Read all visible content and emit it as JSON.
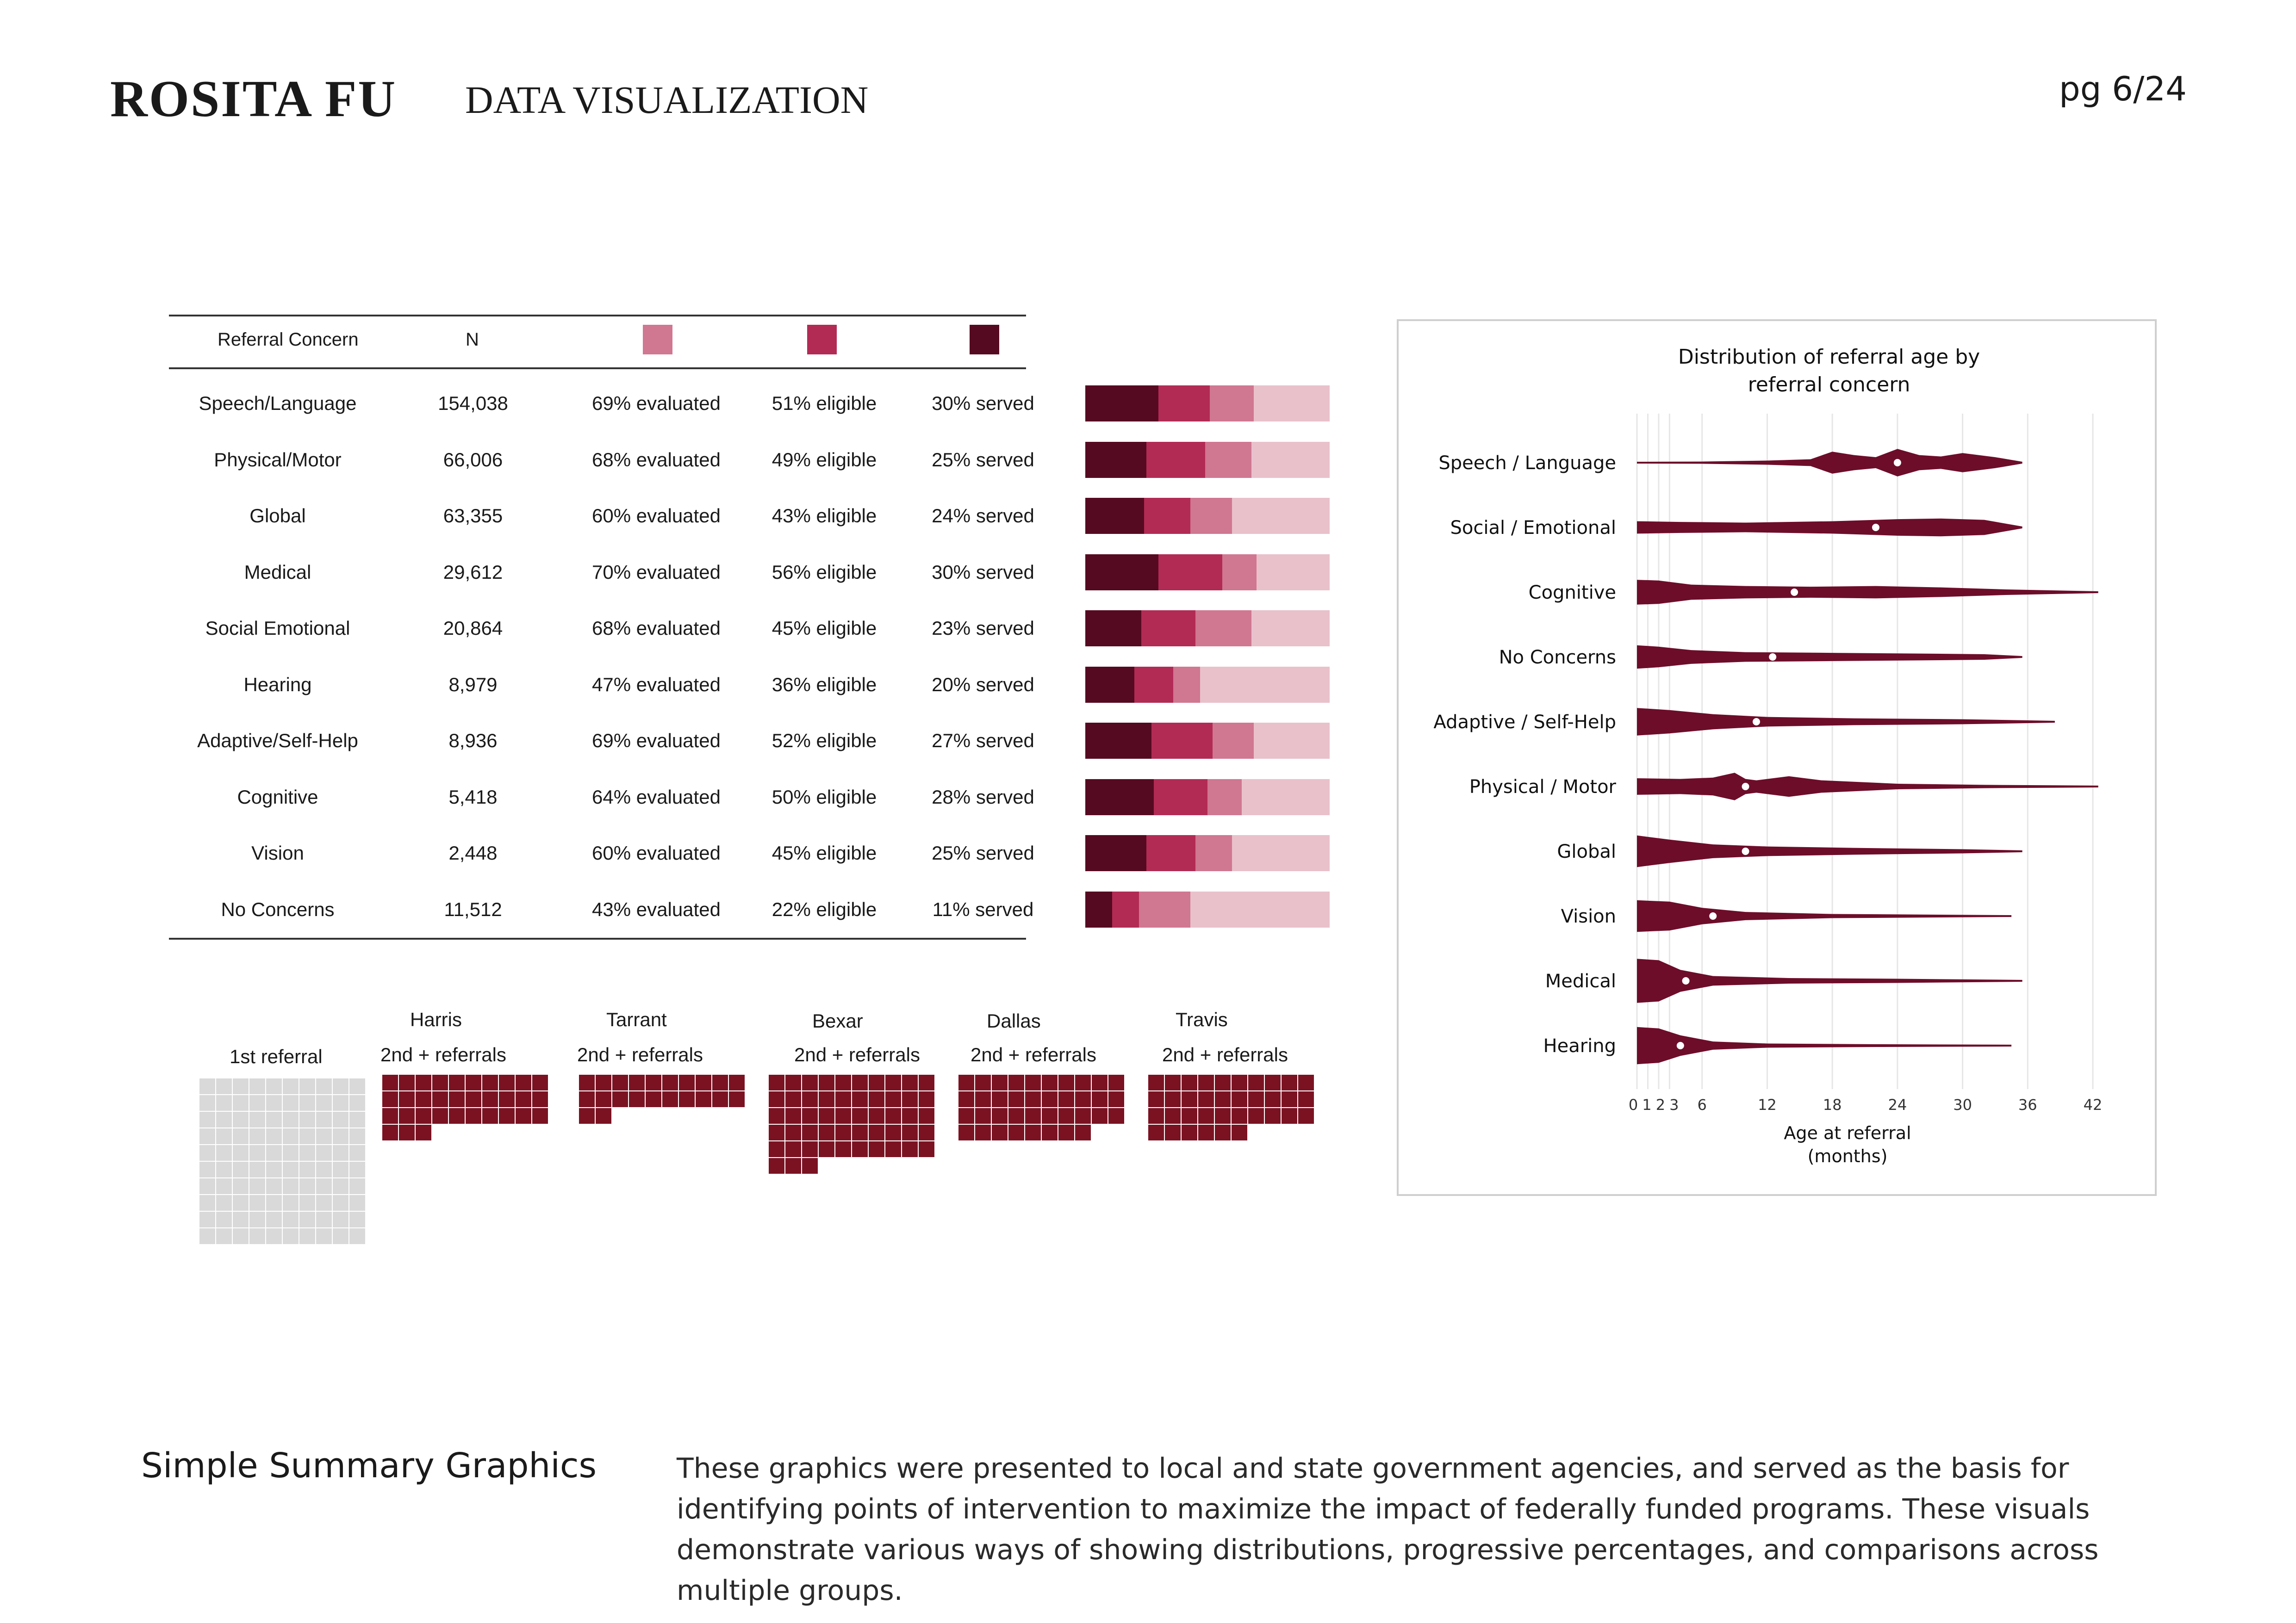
{
  "header": {
    "name": "ROSITA FU",
    "section": "DATA VISUALIZATION",
    "page": "pg 6/24"
  },
  "colors": {
    "served": "#560a21",
    "eligible": "#b22b55",
    "evaluated": "#d07791",
    "rest": "#e9c1cb",
    "violin": "#6d0d2a",
    "waffle": "#7a1222",
    "waffle_grey": "#d9d9d9"
  },
  "table": {
    "headers": {
      "concern": "Referral Concern",
      "n": "N"
    },
    "rows": [
      {
        "concern": "Speech/Language",
        "n": "154,038",
        "evaluated": "69% evaluated",
        "eligible": "51% eligible",
        "served": "30% served"
      },
      {
        "concern": "Physical/Motor",
        "n": "66,006",
        "evaluated": "68% evaluated",
        "eligible": "49% eligible",
        "served": "25% served"
      },
      {
        "concern": "Global",
        "n": "63,355",
        "evaluated": "60% evaluated",
        "eligible": "43% eligible",
        "served": "24% served"
      },
      {
        "concern": "Medical",
        "n": "29,612",
        "evaluated": "70% evaluated",
        "eligible": "56% eligible",
        "served": "30% served"
      },
      {
        "concern": "Social Emotional",
        "n": "20,864",
        "evaluated": "68% evaluated",
        "eligible": "45% eligible",
        "served": "23% served"
      },
      {
        "concern": "Hearing",
        "n": "8,979",
        "evaluated": "47% evaluated",
        "eligible": "36% eligible",
        "served": "20% served"
      },
      {
        "concern": "Adaptive/Self-Help",
        "n": "8,936",
        "evaluated": "69% evaluated",
        "eligible": "52% eligible",
        "served": "27% served"
      },
      {
        "concern": "Cognitive",
        "n": "5,418",
        "evaluated": "64% evaluated",
        "eligible": "50% eligible",
        "served": "28% served"
      },
      {
        "concern": "Vision",
        "n": "2,448",
        "evaluated": "60% evaluated",
        "eligible": "45% eligible",
        "served": "25% served"
      },
      {
        "concern": "No Concerns",
        "n": "11,512",
        "evaluated": "43% evaluated",
        "eligible": "22% eligible",
        "served": "11% served"
      }
    ],
    "bar_fractions": [
      [
        0.3,
        0.51,
        0.69
      ],
      [
        0.25,
        0.49,
        0.68
      ],
      [
        0.24,
        0.43,
        0.6
      ],
      [
        0.3,
        0.56,
        0.7
      ],
      [
        0.23,
        0.45,
        0.68
      ],
      [
        0.2,
        0.36,
        0.47
      ],
      [
        0.27,
        0.52,
        0.69
      ],
      [
        0.28,
        0.5,
        0.64
      ],
      [
        0.25,
        0.45,
        0.6
      ],
      [
        0.11,
        0.22,
        0.43
      ]
    ]
  },
  "waffles": {
    "first": {
      "label": "1st referral",
      "count": 100
    },
    "counties": [
      {
        "county": "Harris",
        "label": "2nd + referrals",
        "count": 33
      },
      {
        "county": "Tarrant",
        "label": "2nd + referrals",
        "count": 22
      },
      {
        "county": "Bexar",
        "label": "2nd + referrals",
        "count": 53
      },
      {
        "county": "Dallas",
        "label": "2nd + referrals",
        "count": 38
      },
      {
        "county": "Travis",
        "label": "2nd + referrals",
        "count": 36
      }
    ]
  },
  "chart_data": {
    "type": "violin",
    "title": "Distribution of referral age by referral concern",
    "title_lines": [
      "Distribution of referral age by",
      "referral concern"
    ],
    "xlabel": "Age at referral (months)",
    "xlabel_lines": [
      "Age at referral",
      "(months)"
    ],
    "xlim": [
      0,
      42
    ],
    "xticks": [
      0,
      1,
      2,
      3,
      6,
      12,
      18,
      24,
      30,
      36,
      42
    ],
    "grid": true,
    "series": [
      {
        "name": "Speech / Language",
        "median": 24,
        "max": 35.5,
        "profile": [
          [
            0,
            0.05
          ],
          [
            6,
            0.08
          ],
          [
            12,
            0.15
          ],
          [
            16,
            0.25
          ],
          [
            18,
            0.8
          ],
          [
            20,
            0.55
          ],
          [
            22,
            0.4
          ],
          [
            24,
            1.0
          ],
          [
            26,
            0.55
          ],
          [
            28,
            0.45
          ],
          [
            30,
            0.7
          ],
          [
            33,
            0.4
          ],
          [
            35.5,
            0
          ]
        ]
      },
      {
        "name": "Social / Emotional",
        "median": 22,
        "max": 35.5,
        "profile": [
          [
            0,
            0.45
          ],
          [
            4,
            0.4
          ],
          [
            10,
            0.35
          ],
          [
            18,
            0.45
          ],
          [
            24,
            0.6
          ],
          [
            28,
            0.65
          ],
          [
            32,
            0.55
          ],
          [
            35.5,
            0
          ]
        ]
      },
      {
        "name": "Cognitive",
        "median": 14.5,
        "max": 42.5,
        "profile": [
          [
            0,
            0.9
          ],
          [
            2,
            0.85
          ],
          [
            5,
            0.55
          ],
          [
            10,
            0.45
          ],
          [
            16,
            0.4
          ],
          [
            22,
            0.45
          ],
          [
            28,
            0.35
          ],
          [
            34,
            0.2
          ],
          [
            42.5,
            0.02
          ]
        ]
      },
      {
        "name": "No Concerns",
        "median": 12.5,
        "max": 35.5,
        "profile": [
          [
            0,
            0.85
          ],
          [
            2,
            0.75
          ],
          [
            5,
            0.5
          ],
          [
            10,
            0.35
          ],
          [
            18,
            0.3
          ],
          [
            26,
            0.25
          ],
          [
            32,
            0.2
          ],
          [
            35.5,
            0
          ]
        ]
      },
      {
        "name": "Adaptive / Self-Help",
        "median": 11,
        "max": 38.5,
        "profile": [
          [
            0,
            1.0
          ],
          [
            3,
            0.85
          ],
          [
            7,
            0.55
          ],
          [
            12,
            0.35
          ],
          [
            20,
            0.25
          ],
          [
            30,
            0.18
          ],
          [
            38.5,
            0.02
          ]
        ]
      },
      {
        "name": "Physical / Motor",
        "median": 10,
        "max": 42.5,
        "profile": [
          [
            0,
            0.6
          ],
          [
            4,
            0.55
          ],
          [
            7,
            0.65
          ],
          [
            9,
            1.0
          ],
          [
            10,
            0.55
          ],
          [
            11,
            0.45
          ],
          [
            14,
            0.75
          ],
          [
            17,
            0.45
          ],
          [
            24,
            0.2
          ],
          [
            32,
            0.12
          ],
          [
            42.5,
            0.03
          ]
        ]
      },
      {
        "name": "Global",
        "median": 10,
        "max": 35.5,
        "profile": [
          [
            0,
            1.15
          ],
          [
            3,
            0.85
          ],
          [
            7,
            0.5
          ],
          [
            12,
            0.35
          ],
          [
            20,
            0.25
          ],
          [
            30,
            0.15
          ],
          [
            35.5,
            0
          ]
        ]
      },
      {
        "name": "Vision",
        "median": 7,
        "max": 34.5,
        "profile": [
          [
            0,
            1.15
          ],
          [
            3,
            1.05
          ],
          [
            6,
            0.6
          ],
          [
            10,
            0.3
          ],
          [
            18,
            0.15
          ],
          [
            28,
            0.1
          ],
          [
            34.5,
            0
          ]
        ]
      },
      {
        "name": "Medical",
        "median": 4.5,
        "max": 35.5,
        "profile": [
          [
            0,
            1.6
          ],
          [
            2,
            1.5
          ],
          [
            4,
            0.8
          ],
          [
            7,
            0.35
          ],
          [
            14,
            0.2
          ],
          [
            24,
            0.15
          ],
          [
            35.5,
            0
          ]
        ]
      },
      {
        "name": "Hearing",
        "median": 4,
        "max": 34.5,
        "profile": [
          [
            0,
            1.35
          ],
          [
            2,
            1.25
          ],
          [
            4,
            0.75
          ],
          [
            7,
            0.3
          ],
          [
            12,
            0.15
          ],
          [
            22,
            0.1
          ],
          [
            34.5,
            0
          ]
        ]
      }
    ]
  },
  "footer": {
    "title": "Simple Summary Graphics",
    "body": "These graphics were presented to local and state government agencies, and served as the basis for identifying points of intervention to maximize the impact of federally funded programs. These visuals demonstrate various ways of showing distributions, progressive percentages, and comparisons across multiple groups."
  }
}
